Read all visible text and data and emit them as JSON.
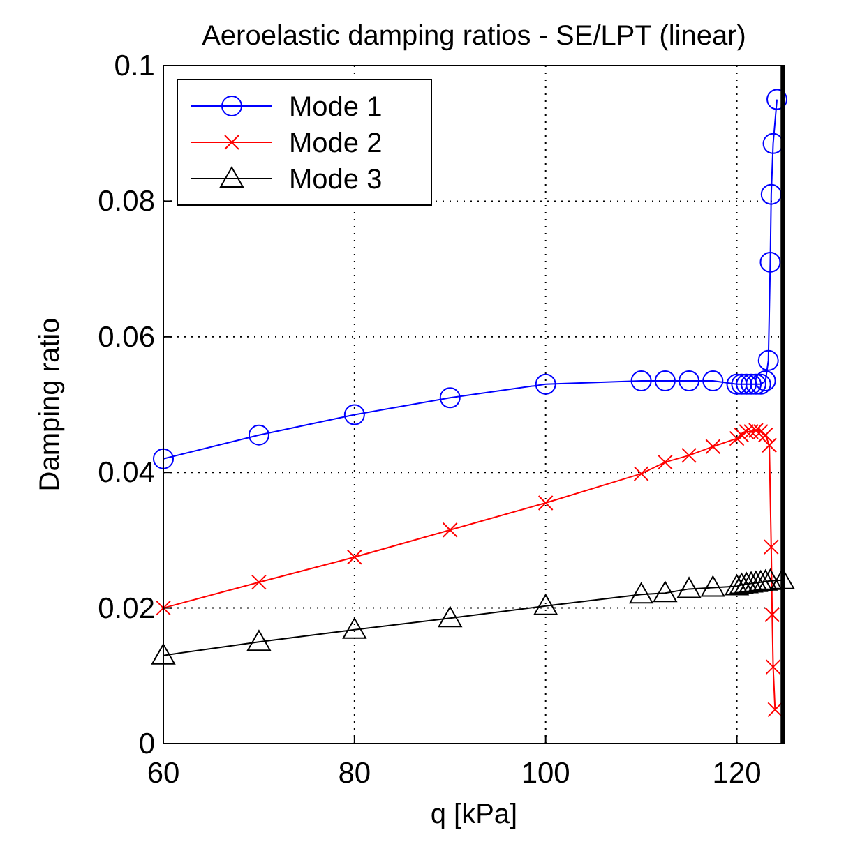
{
  "chart_data": {
    "type": "line",
    "title": "Aeroelastic damping ratios - SE/LPT (linear)",
    "xlabel": "q [kPa]",
    "ylabel": "Damping ratio",
    "xlim": [
      60,
      125
    ],
    "xticks": [
      60,
      80,
      100,
      120
    ],
    "ylim": [
      0,
      0.1
    ],
    "yticks": [
      0,
      0.02,
      0.04,
      0.06,
      0.08,
      0.1
    ],
    "grid": true,
    "legend": "top left",
    "ref_lines": [
      {
        "axis": "x",
        "value": 124.8,
        "color": "#000000"
      }
    ],
    "series": [
      {
        "name": "Mode 1",
        "color": "#0000ff",
        "marker": "circle",
        "x": [
          60,
          70,
          80,
          90,
          100,
          110,
          112.5,
          115,
          117.5,
          120,
          120.5,
          121,
          121.5,
          122,
          122.5,
          123,
          123.3,
          123.5,
          123.6,
          123.8,
          124.2
        ],
        "values": [
          0.042,
          0.0455,
          0.0485,
          0.051,
          0.053,
          0.0535,
          0.0535,
          0.0535,
          0.0535,
          0.053,
          0.053,
          0.053,
          0.053,
          0.053,
          0.053,
          0.0535,
          0.0565,
          0.071,
          0.081,
          0.0885,
          0.095
        ]
      },
      {
        "name": "Mode 2",
        "color": "#ff0000",
        "marker": "cross",
        "x": [
          60,
          70,
          80,
          90,
          100,
          110,
          112.5,
          115,
          117.5,
          120,
          120.5,
          121,
          121.5,
          122,
          122.5,
          123,
          123.4,
          123.6,
          123.7,
          123.8,
          124
        ],
        "values": [
          0.02,
          0.0238,
          0.0275,
          0.0315,
          0.0355,
          0.0398,
          0.0415,
          0.0425,
          0.0438,
          0.045,
          0.0455,
          0.046,
          0.046,
          0.0462,
          0.046,
          0.0455,
          0.044,
          0.029,
          0.019,
          0.0113,
          0.005
        ]
      },
      {
        "name": "Mode 3",
        "color": "#000000",
        "marker": "triangle",
        "x": [
          60,
          70,
          80,
          90,
          100,
          110,
          112.5,
          115,
          117.5,
          120,
          120.5,
          121,
          121.5,
          122,
          122.5,
          123,
          123.5,
          124.8
        ],
        "values": [
          0.013,
          0.015,
          0.0168,
          0.0185,
          0.0203,
          0.022,
          0.0222,
          0.0228,
          0.023,
          0.0232,
          0.0234,
          0.0235,
          0.0236,
          0.0237,
          0.0238,
          0.0239,
          0.024,
          0.0241
        ]
      }
    ]
  }
}
